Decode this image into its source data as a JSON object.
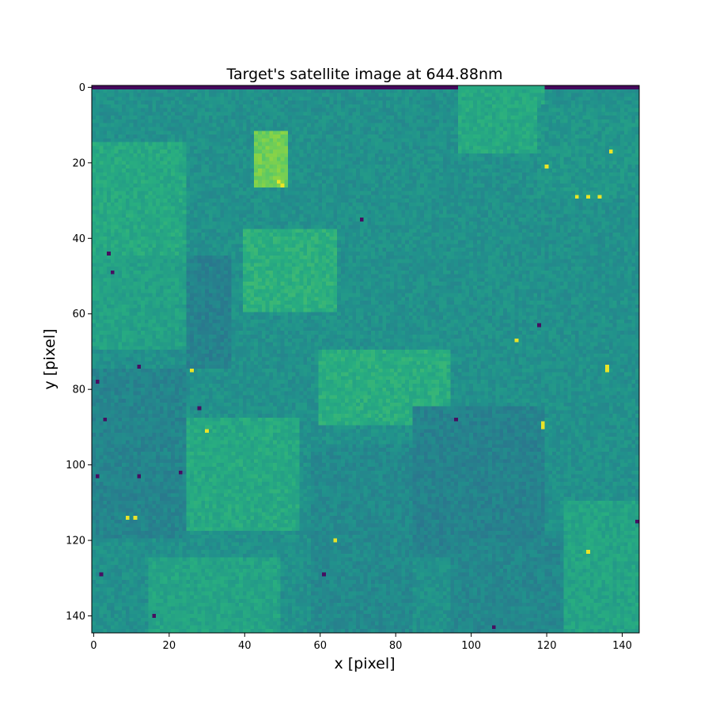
{
  "chart_data": {
    "type": "heatmap",
    "title": "Target's satellite image at 644.88nm",
    "xlabel": "x [pixel]",
    "ylabel": "y [pixel]",
    "image_size": [
      145,
      145
    ],
    "xlim": [
      -0.5,
      144.5
    ],
    "ylim": [
      144.5,
      -0.5
    ],
    "x_ticks": [
      0,
      20,
      40,
      60,
      80,
      100,
      120,
      140
    ],
    "y_ticks": [
      0,
      20,
      40,
      60,
      80,
      100,
      120,
      140
    ],
    "colormap": "viridis",
    "value_range": [
      0,
      1
    ],
    "base_level": 0.5,
    "grid": false,
    "colors": {
      "low": "#440154",
      "mid_dark": "#31688e",
      "mid": "#21918c",
      "mid_light": "#35b779",
      "high": "#fde725"
    },
    "regions": [
      {
        "x": [
          0,
          145
        ],
        "y": [
          0,
          1
        ],
        "level": 0.03
      },
      {
        "x": [
          0,
          25
        ],
        "y": [
          15,
          45
        ],
        "level": 0.6
      },
      {
        "x": [
          0,
          25
        ],
        "y": [
          45,
          70
        ],
        "level": 0.57
      },
      {
        "x": [
          25,
          37
        ],
        "y": [
          45,
          75
        ],
        "level": 0.44
      },
      {
        "x": [
          40,
          65
        ],
        "y": [
          38,
          60
        ],
        "level": 0.63
      },
      {
        "x": [
          43,
          52
        ],
        "y": [
          12,
          27
        ],
        "level": 0.78
      },
      {
        "x": [
          97,
          120
        ],
        "y": [
          0,
          18
        ],
        "level": 0.6
      },
      {
        "x": [
          118,
          145
        ],
        "y": [
          5,
          30
        ],
        "level": 0.52
      },
      {
        "x": [
          60,
          95
        ],
        "y": [
          70,
          90
        ],
        "level": 0.62
      },
      {
        "x": [
          25,
          55
        ],
        "y": [
          88,
          118
        ],
        "level": 0.6
      },
      {
        "x": [
          15,
          50
        ],
        "y": [
          125,
          145
        ],
        "level": 0.58
      },
      {
        "x": [
          0,
          25
        ],
        "y": [
          75,
          120
        ],
        "level": 0.45
      },
      {
        "x": [
          85,
          120
        ],
        "y": [
          85,
          125
        ],
        "level": 0.44
      },
      {
        "x": [
          120,
          145
        ],
        "y": [
          85,
          110
        ],
        "level": 0.5
      },
      {
        "x": [
          125,
          145
        ],
        "y": [
          110,
          145
        ],
        "level": 0.58
      },
      {
        "x": [
          58,
          85
        ],
        "y": [
          95,
          145
        ],
        "level": 0.47
      },
      {
        "x": [
          95,
          125
        ],
        "y": [
          120,
          145
        ],
        "level": 0.46
      }
    ],
    "hot_pixels": [
      {
        "x": 26,
        "y": 75
      },
      {
        "x": 30,
        "y": 91
      },
      {
        "x": 9,
        "y": 114
      },
      {
        "x": 11,
        "y": 114
      },
      {
        "x": 64,
        "y": 120
      },
      {
        "x": 131,
        "y": 123
      },
      {
        "x": 136,
        "y": 74
      },
      {
        "x": 136,
        "y": 75
      },
      {
        "x": 119,
        "y": 89
      },
      {
        "x": 119,
        "y": 90
      },
      {
        "x": 112,
        "y": 67
      },
      {
        "x": 49,
        "y": 25
      },
      {
        "x": 50,
        "y": 26
      },
      {
        "x": 128,
        "y": 29
      },
      {
        "x": 131,
        "y": 29
      },
      {
        "x": 134,
        "y": 29
      },
      {
        "x": 120,
        "y": 21
      },
      {
        "x": 137,
        "y": 17
      }
    ],
    "dead_pixels": [
      {
        "x": 4,
        "y": 44
      },
      {
        "x": 5,
        "y": 49
      },
      {
        "x": 71,
        "y": 35
      },
      {
        "x": 1,
        "y": 78
      },
      {
        "x": 12,
        "y": 74
      },
      {
        "x": 3,
        "y": 88
      },
      {
        "x": 28,
        "y": 85
      },
      {
        "x": 1,
        "y": 103
      },
      {
        "x": 12,
        "y": 103
      },
      {
        "x": 23,
        "y": 102
      },
      {
        "x": 2,
        "y": 129
      },
      {
        "x": 16,
        "y": 140
      },
      {
        "x": 61,
        "y": 129
      },
      {
        "x": 96,
        "y": 88
      },
      {
        "x": 106,
        "y": 143
      },
      {
        "x": 118,
        "y": 63
      },
      {
        "x": 144,
        "y": 115
      }
    ]
  }
}
